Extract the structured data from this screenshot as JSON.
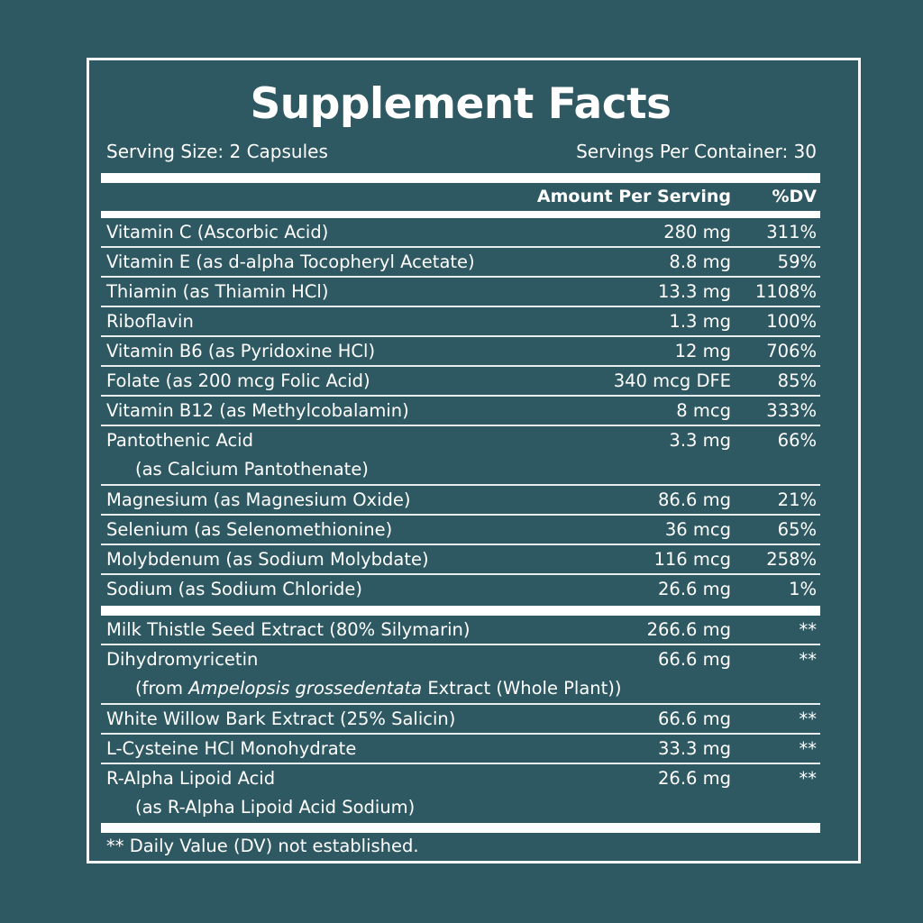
{
  "title": "Supplement Facts",
  "serving_size": "Serving Size: 2 Capsules",
  "servings_per_container": "Servings Per Container: 30",
  "header": {
    "amount": "Amount Per Serving",
    "dv": "%DV"
  },
  "group1": [
    {
      "name": "Vitamin C (Ascorbic Acid)",
      "amount": "280 mg",
      "dv": "311%"
    },
    {
      "name": "Vitamin E (as d-alpha Tocopheryl Acetate)",
      "amount": "8.8 mg",
      "dv": "59%"
    },
    {
      "name": "Thiamin (as Thiamin HCl)",
      "amount": "13.3 mg",
      "dv": "1108%"
    },
    {
      "name": "Riboflavin",
      "amount": "1.3 mg",
      "dv": "100%"
    },
    {
      "name": "Vitamin B6 (as Pyridoxine HCl)",
      "amount": "12 mg",
      "dv": "706%"
    },
    {
      "name": "Folate (as 200 mcg Folic Acid)",
      "amount": "340 mcg DFE",
      "dv": "85%"
    },
    {
      "name": "Vitamin B12 (as Methylcobalamin)",
      "amount": "8 mcg",
      "dv": "333%"
    },
    {
      "name": "Pantothenic Acid",
      "sub": "(as Calcium Pantothenate)",
      "amount": "3.3 mg",
      "dv": "66%"
    },
    {
      "name": "Magnesium (as Magnesium Oxide)",
      "amount": "86.6 mg",
      "dv": "21%"
    },
    {
      "name": "Selenium (as Selenomethionine)",
      "amount": "36 mcg",
      "dv": "65%"
    },
    {
      "name": "Molybdenum (as Sodium Molybdate)",
      "amount": "116 mcg",
      "dv": "258%"
    },
    {
      "name": "Sodium (as Sodium Chloride)",
      "amount": "26.6 mg",
      "dv": "1%"
    }
  ],
  "group2": [
    {
      "name": "Milk Thistle Seed Extract (80% Silymarin)",
      "amount": "266.6 mg",
      "dv": "**"
    },
    {
      "name": "Dihydromyricetin",
      "sub_pre": "(from ",
      "sub_italic": "Ampelopsis grossedentata",
      "sub_post": " Extract (Whole Plant))",
      "amount": "66.6 mg",
      "dv": "**"
    },
    {
      "name": "White Willow Bark Extract (25% Salicin)",
      "amount": "66.6 mg",
      "dv": "**"
    },
    {
      "name": "L-Cysteine HCl Monohydrate",
      "amount": "33.3 mg",
      "dv": "**"
    },
    {
      "name": "R-Alpha Lipoid Acid",
      "sub": "(as R-Alpha Lipoid Acid Sodium)",
      "amount": "26.6 mg",
      "dv": "**"
    }
  ],
  "footnote": "** Daily Value (DV) not established.",
  "colors": {
    "background": "#2f5962",
    "text": "#ffffff"
  }
}
